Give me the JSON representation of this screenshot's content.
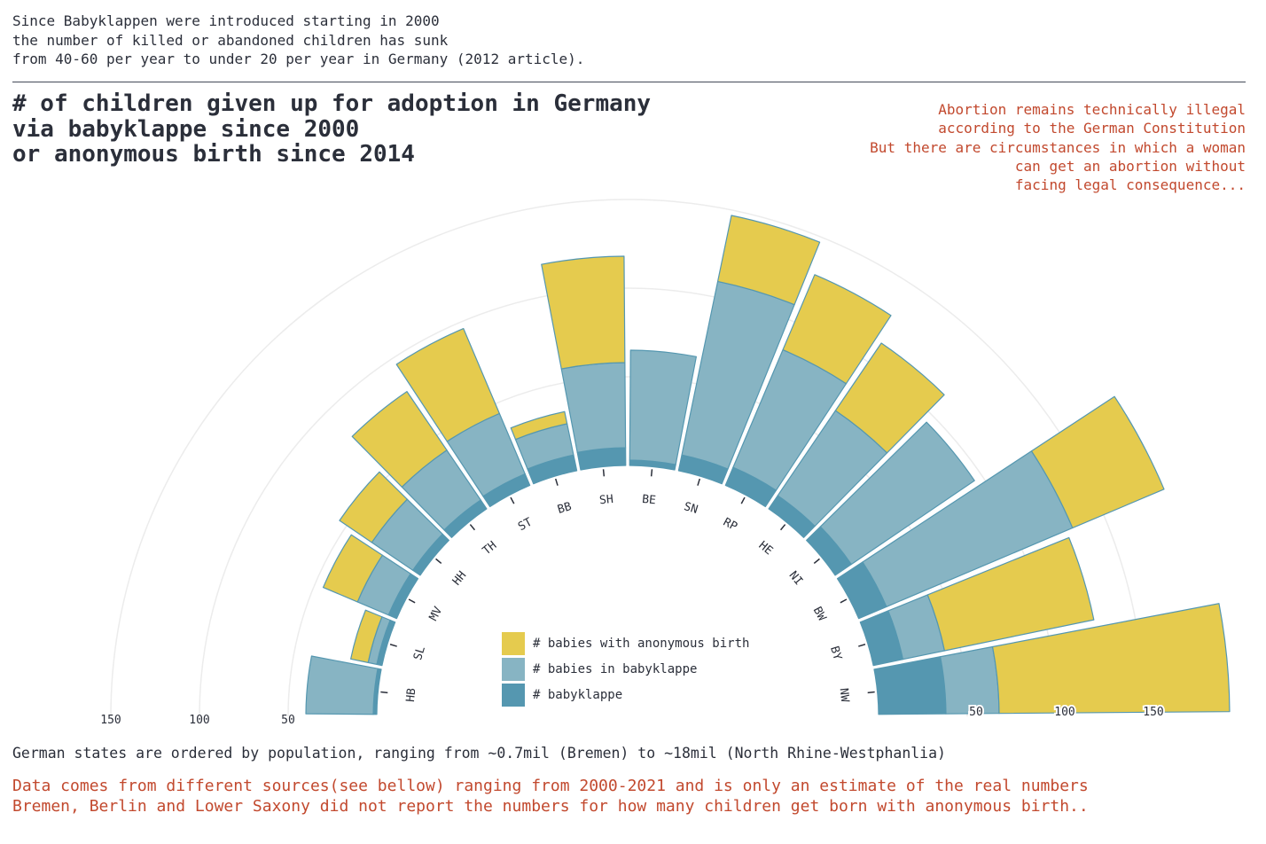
{
  "intro": [
    "Since Babyklappen were introduced starting in 2000",
    "the number of killed or abandoned children has sunk",
    "from 40-60 per year to under 20 per year in Germany (2012 article)."
  ],
  "title": [
    "# of children given up for adoption in Germany",
    "via babyklappe since 2000",
    "or anonymous birth since 2014"
  ],
  "note": [
    "Abortion remains technically illegal",
    "according to the German Constitution",
    "But there are circumstances in which a woman",
    "can get an abortion without",
    "facing legal consequence..."
  ],
  "footnote": "German states are ordered by population, ranging from ~0.7mil (Bremen) to ~18mil (North Rhine-Westphanlia)",
  "sources": [
    "Data comes from different sources(see bellow) ranging from 2000-2021 and is only an estimate of the real numbers",
    "Bremen, Berlin and Lower Saxony did not report the numbers for how many children get born with anonymous birth.."
  ],
  "legend": [
    {
      "label": "# babies with anonymous birth",
      "color": "#e5cb4e"
    },
    {
      "label": "# babies in babyklappe",
      "color": "#87b4c3"
    },
    {
      "label": "# babyklappe",
      "color": "#5597b0"
    }
  ],
  "chart_data": {
    "type": "bar",
    "layout": "radial-stacked-semicircle",
    "categories": [
      "HB",
      "SL",
      "MV",
      "HH",
      "TH",
      "ST",
      "BB",
      "SH",
      "BE",
      "SN",
      "RP",
      "HE",
      "NI",
      "BW",
      "BY",
      "NW"
    ],
    "series": [
      {
        "name": "# babyklappe",
        "color": "#5597b0",
        "values": [
          2,
          3,
          5,
          5,
          6,
          7,
          9,
          10,
          3,
          9,
          11,
          9,
          11,
          17,
          17,
          38
        ]
      },
      {
        "name": "# babies in babyklappe",
        "color": "#87b4c3",
        "values": [
          38,
          5,
          19,
          28,
          34,
          37,
          18,
          48,
          62,
          100,
          72,
          58,
          84,
          114,
          24,
          30
        ]
      },
      {
        "name": "# babies with anonymous birth",
        "color": "#e5cb4e",
        "values": [
          0,
          10,
          21,
          22,
          40,
          52,
          7,
          60,
          0,
          38,
          46,
          46,
          0,
          56,
          86,
          130
        ]
      }
    ],
    "axis_ticks": [
      50,
      100,
      150
    ],
    "grid": true
  }
}
